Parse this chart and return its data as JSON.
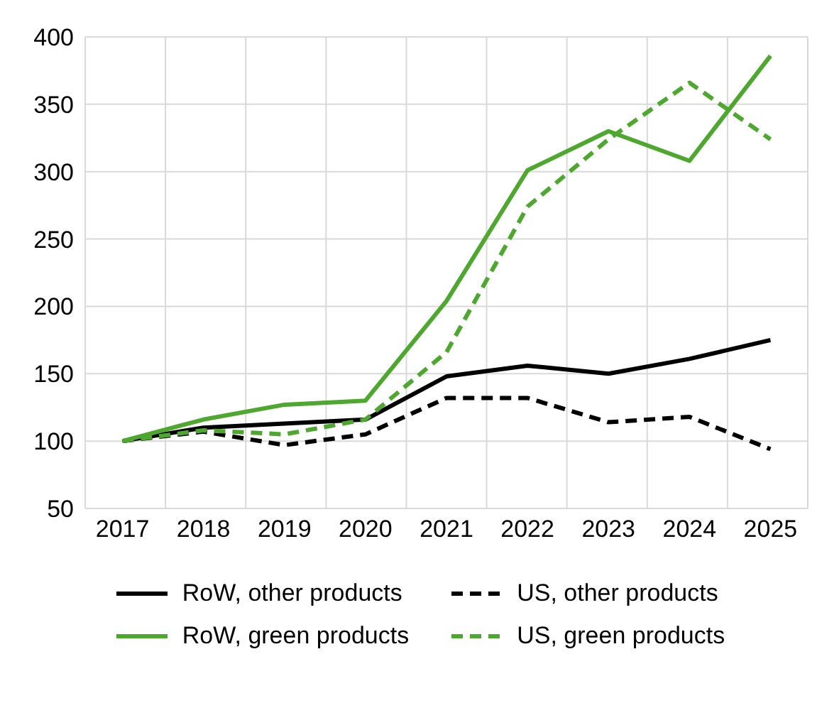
{
  "chart_data": {
    "type": "line",
    "categories": [
      "2017",
      "2018",
      "2019",
      "2020",
      "2021",
      "2022",
      "2023",
      "2024",
      "2025"
    ],
    "series": [
      {
        "name": "RoW, other products",
        "color": "#000000",
        "line_style": "solid",
        "values": [
          100,
          110,
          113,
          116,
          148,
          156,
          150,
          161,
          175
        ]
      },
      {
        "name": "US, other products",
        "color": "#000000",
        "line_style": "dashed",
        "values": [
          100,
          107,
          97,
          105,
          132,
          132,
          114,
          118,
          94
        ]
      },
      {
        "name": "RoW, green products",
        "color": "#4ea72e",
        "line_style": "solid",
        "values": [
          100,
          116,
          127,
          130,
          204,
          301,
          330,
          308,
          386
        ]
      },
      {
        "name": "US, green products",
        "color": "#4ea72e",
        "line_style": "dashed",
        "values": [
          100,
          108,
          105,
          116,
          166,
          274,
          324,
          366,
          324
        ]
      }
    ],
    "ylim": [
      50,
      400
    ],
    "yticks": [
      50,
      100,
      150,
      200,
      250,
      300,
      350,
      400
    ],
    "grid": true,
    "legend": "bottom",
    "marker": "none"
  }
}
